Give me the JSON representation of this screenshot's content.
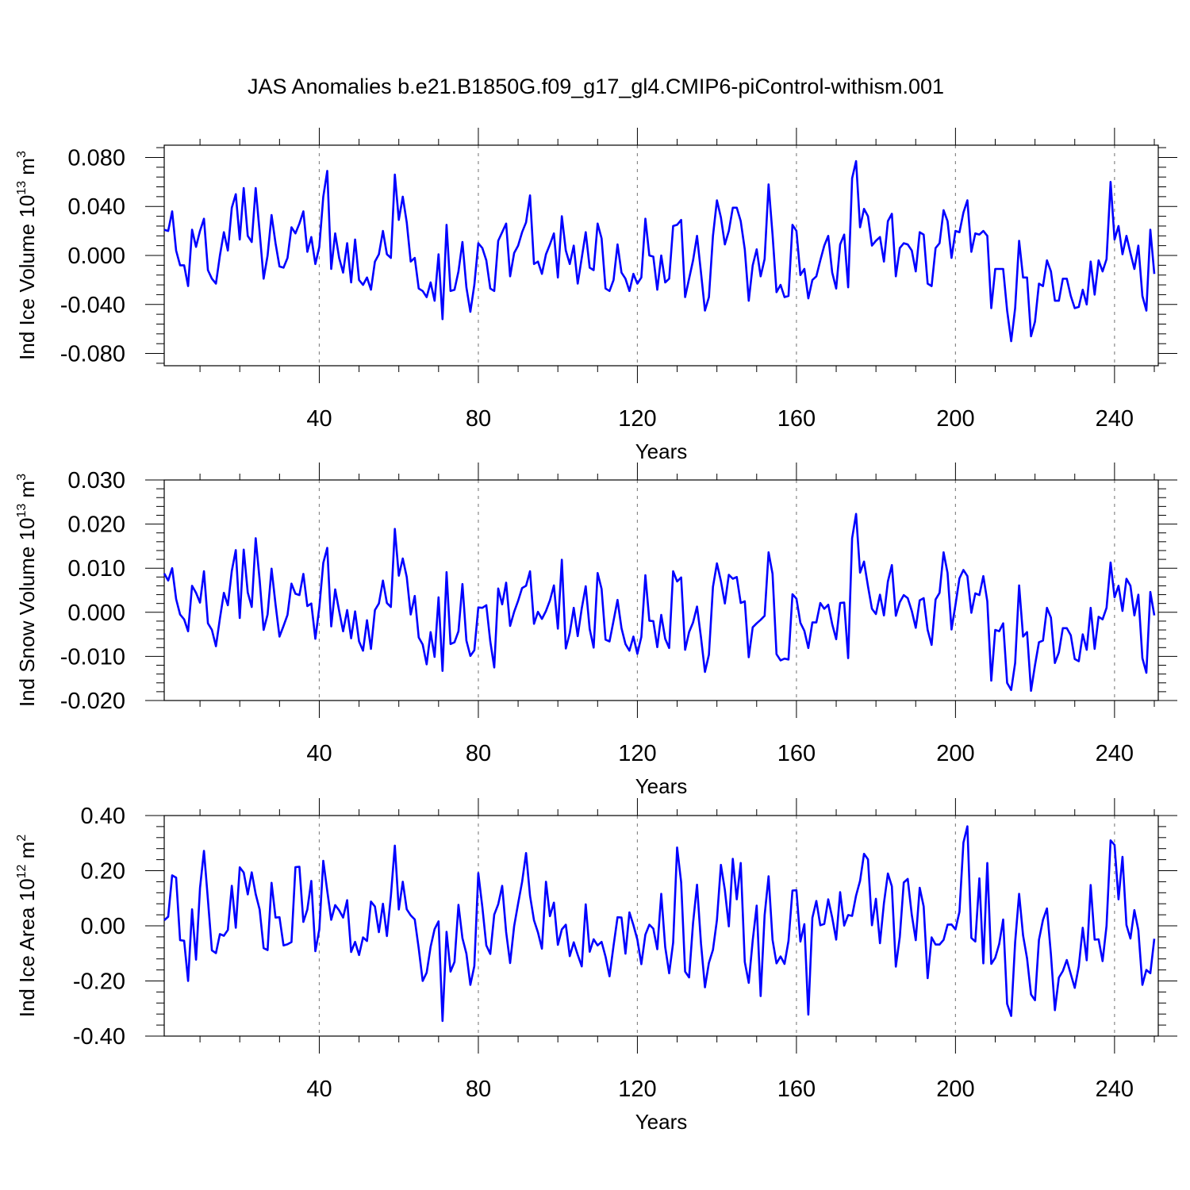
{
  "chart_data": {
    "type": "line",
    "title": "JAS Anomalies b.e21.B1850G.f09_g17_gl4.CMIP6-piControl-withism.001",
    "x_start": 1,
    "series_color": "#0000ff",
    "panels": [
      {
        "name": "ice-volume",
        "ylabel": "Ind Ice Volume 10",
        "ylabel_exp": "13",
        "ylabel_unit": " m",
        "ylabel_unit_exp": "3",
        "xlabel": "Years",
        "xlim": [
          1,
          251
        ],
        "ylim": [
          -0.09,
          0.09
        ],
        "xticks": [
          40,
          80,
          120,
          160,
          200,
          240
        ],
        "xtick_labels": [
          "40",
          "80",
          "120",
          "160",
          "200",
          "240"
        ],
        "yticks": [
          -0.08,
          -0.04,
          0.0,
          0.04,
          0.08
        ],
        "ytick_labels": [
          "-0.080",
          "-0.040",
          "0.000",
          "0.040",
          "0.080"
        ],
        "values": [
          0.021,
          0.02,
          0.036,
          0.004,
          -0.008,
          -0.008,
          -0.025,
          0.021,
          0.007,
          0.02,
          0.03,
          -0.012,
          -0.019,
          -0.023,
          0.0,
          0.019,
          0.004,
          0.039,
          0.05,
          0.013,
          0.055,
          0.016,
          0.011,
          0.055,
          0.019,
          -0.019,
          0.0,
          0.033,
          0.01,
          -0.009,
          -0.01,
          -0.002,
          0.023,
          0.018,
          0.026,
          0.036,
          0.003,
          0.015,
          -0.007,
          0.007,
          0.048,
          0.069,
          -0.011,
          0.018,
          -0.002,
          -0.014,
          0.01,
          -0.022,
          0.013,
          -0.02,
          -0.024,
          -0.018,
          -0.028,
          -0.005,
          0.001,
          0.02,
          0.001,
          -0.002,
          0.066,
          0.029,
          0.048,
          0.027,
          -0.005,
          -0.002,
          -0.027,
          -0.029,
          -0.034,
          -0.022,
          -0.037,
          0.001,
          -0.052,
          0.025,
          -0.029,
          -0.028,
          -0.013,
          0.011,
          -0.026,
          -0.046,
          -0.024,
          0.01,
          0.006,
          -0.004,
          -0.027,
          -0.029,
          0.012,
          0.019,
          0.026,
          -0.017,
          0.002,
          0.008,
          0.019,
          0.027,
          0.049,
          -0.007,
          -0.005,
          -0.015,
          0.001,
          0.009,
          0.018,
          -0.018,
          0.032,
          0.004,
          -0.007,
          0.008,
          -0.023,
          -0.002,
          0.019,
          -0.01,
          -0.012,
          0.026,
          0.014,
          -0.027,
          -0.029,
          -0.02,
          0.009,
          -0.014,
          -0.019,
          -0.029,
          -0.015,
          -0.023,
          -0.018,
          0.03,
          0.0,
          -0.001,
          -0.028,
          0.0,
          -0.022,
          -0.019,
          0.024,
          0.025,
          0.029,
          -0.034,
          -0.019,
          -0.004,
          0.016,
          -0.014,
          -0.045,
          -0.034,
          0.016,
          0.045,
          0.031,
          0.009,
          0.02,
          0.039,
          0.039,
          0.028,
          0.005,
          -0.037,
          -0.008,
          0.005,
          -0.017,
          -0.003,
          0.058,
          0.017,
          -0.03,
          -0.024,
          -0.034,
          -0.033,
          0.025,
          0.02,
          -0.016,
          -0.011,
          -0.035,
          -0.02,
          -0.017,
          -0.004,
          0.008,
          0.016,
          -0.014,
          -0.027,
          0.009,
          0.017,
          -0.026,
          0.063,
          0.077,
          0.023,
          0.038,
          0.032,
          0.008,
          0.012,
          0.015,
          -0.005,
          0.028,
          0.034,
          -0.017,
          0.006,
          0.01,
          0.009,
          0.004,
          -0.013,
          0.019,
          0.017,
          -0.023,
          -0.025,
          0.006,
          0.01,
          0.037,
          0.028,
          -0.002,
          0.02,
          0.019,
          0.035,
          0.045,
          0.003,
          0.018,
          0.017,
          0.02,
          0.016,
          -0.043,
          -0.011,
          -0.011,
          -0.011,
          -0.045,
          -0.07,
          -0.043,
          0.012,
          -0.018,
          -0.018,
          -0.066,
          -0.054,
          -0.023,
          -0.025,
          -0.004,
          -0.013,
          -0.037,
          -0.037,
          -0.019,
          -0.019,
          -0.033,
          -0.043,
          -0.042,
          -0.028,
          -0.04,
          -0.005,
          -0.032,
          -0.004,
          -0.013,
          -0.003,
          0.06,
          0.013,
          0.024,
          0.001,
          0.016,
          0.002,
          -0.011,
          0.008,
          -0.033,
          -0.045,
          0.021,
          -0.015
        ]
      },
      {
        "name": "snow-volume",
        "ylabel": "Ind Snow Volume 10",
        "ylabel_exp": "13",
        "ylabel_unit": " m",
        "ylabel_unit_exp": "3",
        "xlabel": "Years",
        "xlim": [
          1,
          251
        ],
        "ylim": [
          -0.02,
          0.03
        ],
        "xticks": [
          40,
          80,
          120,
          160,
          200,
          240
        ],
        "xtick_labels": [
          "40",
          "80",
          "120",
          "160",
          "200",
          "240"
        ],
        "yticks": [
          -0.02,
          -0.01,
          0.0,
          0.01,
          0.02,
          0.03
        ],
        "ytick_labels": [
          "-0.020",
          "-0.010",
          "0.000",
          "0.010",
          "0.020",
          "0.030"
        ],
        "values": [
          0.0088,
          0.0072,
          0.01,
          0.003,
          -0.0005,
          -0.0016,
          -0.0043,
          0.006,
          0.0044,
          0.0022,
          0.0093,
          -0.0025,
          -0.004,
          -0.0077,
          -0.0014,
          0.0044,
          0.0016,
          0.0094,
          0.0141,
          -0.0013,
          0.0142,
          0.0045,
          0.0012,
          0.0168,
          0.0073,
          -0.004,
          -0.0005,
          0.0099,
          0.0018,
          -0.0055,
          -0.0031,
          -0.0006,
          0.0065,
          0.0042,
          0.0039,
          0.0087,
          0.0014,
          0.002,
          -0.006,
          0.0011,
          0.0112,
          0.0146,
          -0.0032,
          0.0052,
          0.0003,
          -0.0043,
          0.0005,
          -0.0059,
          0.0002,
          -0.0066,
          -0.0087,
          -0.0018,
          -0.0083,
          0.0005,
          0.002,
          0.0072,
          0.0021,
          0.0012,
          0.0189,
          0.0083,
          0.0122,
          0.008,
          -0.0005,
          0.0037,
          -0.0057,
          -0.0073,
          -0.0118,
          -0.0045,
          -0.0101,
          0.0034,
          -0.0133,
          0.0091,
          -0.0072,
          -0.0068,
          -0.0043,
          0.0064,
          -0.0064,
          -0.0099,
          -0.0086,
          0.0011,
          0.001,
          0.0016,
          -0.0066,
          -0.0125,
          0.0054,
          0.0018,
          0.0067,
          -0.0031,
          0.0001,
          0.0026,
          0.0055,
          0.006,
          0.0093,
          -0.0026,
          0.0001,
          -0.0015,
          0.0003,
          0.0027,
          0.0061,
          -0.0037,
          0.0119,
          -0.0082,
          -0.0047,
          0.001,
          -0.0054,
          0.0009,
          0.0059,
          -0.0038,
          -0.008,
          0.0089,
          0.0053,
          -0.0062,
          -0.0066,
          -0.0019,
          0.0028,
          -0.0036,
          -0.0072,
          -0.0087,
          -0.0055,
          -0.0094,
          -0.0056,
          0.0084,
          -0.0019,
          -0.002,
          -0.0079,
          -0.0006,
          -0.006,
          -0.0081,
          0.0093,
          0.007,
          0.0079,
          -0.0085,
          -0.0045,
          -0.0023,
          0.0013,
          -0.0057,
          -0.0135,
          -0.0096,
          0.0058,
          0.0111,
          0.0071,
          0.002,
          0.0085,
          0.0076,
          0.008,
          0.0021,
          0.0025,
          -0.0102,
          -0.0034,
          -0.0025,
          -0.0017,
          -0.0008,
          0.0136,
          0.0087,
          -0.0095,
          -0.0109,
          -0.0105,
          -0.0107,
          0.0041,
          0.0031,
          -0.0024,
          -0.0042,
          -0.0081,
          -0.0023,
          -0.0023,
          0.0021,
          0.0008,
          0.0017,
          -0.0027,
          -0.0061,
          0.0021,
          0.0022,
          -0.0104,
          0.0168,
          0.0223,
          0.009,
          0.0115,
          0.0059,
          0.0008,
          -0.0004,
          0.004,
          -0.0007,
          0.007,
          0.0107,
          -0.0008,
          0.0023,
          0.0039,
          0.0032,
          0.0003,
          -0.0035,
          0.0027,
          0.0032,
          -0.004,
          -0.0074,
          0.0029,
          0.0044,
          0.0136,
          0.0089,
          -0.0039,
          0.0017,
          0.0077,
          0.0096,
          0.0082,
          -0.0001,
          0.0043,
          0.0039,
          0.0082,
          0.0025,
          -0.0155,
          -0.004,
          -0.0043,
          -0.0025,
          -0.016,
          -0.0176,
          -0.0115,
          0.0061,
          -0.0055,
          -0.0045,
          -0.0178,
          -0.012,
          -0.0068,
          -0.0064,
          0.001,
          -0.0012,
          -0.0115,
          -0.0091,
          -0.0036,
          -0.0036,
          -0.0052,
          -0.0106,
          -0.0111,
          -0.005,
          -0.0085,
          0.001,
          -0.0083,
          -0.001,
          -0.0016,
          0.001,
          0.0113,
          0.0034,
          0.006,
          0.0003,
          0.0076,
          0.006,
          -0.0007,
          0.004,
          -0.0104,
          -0.0137,
          0.0046,
          -0.0007
        ]
      },
      {
        "name": "ice-area",
        "ylabel": "Ind Ice Area 10",
        "ylabel_exp": "12",
        "ylabel_unit": " m",
        "ylabel_unit_exp": "2",
        "xlabel": "Years",
        "xlim": [
          1,
          251
        ],
        "ylim": [
          -0.4,
          0.4
        ],
        "xticks": [
          40,
          80,
          120,
          160,
          200,
          240
        ],
        "xtick_labels": [
          "40",
          "80",
          "120",
          "160",
          "200",
          "240"
        ],
        "yticks": [
          -0.4,
          -0.2,
          0.0,
          0.2,
          0.4
        ],
        "ytick_labels": [
          "-0.40",
          "-0.20",
          "0.00",
          "0.20",
          "0.40"
        ],
        "values": [
          0.02,
          0.033,
          0.183,
          0.175,
          -0.052,
          -0.054,
          -0.2,
          0.06,
          -0.123,
          0.137,
          0.272,
          0.094,
          -0.089,
          -0.099,
          -0.03,
          -0.036,
          -0.015,
          0.145,
          -0.007,
          0.212,
          0.193,
          0.114,
          0.194,
          0.115,
          0.059,
          -0.081,
          -0.088,
          0.156,
          0.03,
          0.031,
          -0.071,
          -0.067,
          -0.059,
          0.213,
          0.214,
          0.014,
          0.059,
          0.163,
          -0.092,
          -0.013,
          0.236,
          0.127,
          0.022,
          0.075,
          0.056,
          0.03,
          0.093,
          -0.095,
          -0.058,
          -0.106,
          -0.042,
          -0.055,
          0.088,
          0.07,
          -0.023,
          0.08,
          -0.037,
          0.108,
          0.291,
          0.059,
          0.16,
          0.06,
          0.038,
          0.023,
          -0.082,
          -0.2,
          -0.17,
          -0.076,
          -0.012,
          0.016,
          -0.345,
          -0.022,
          -0.166,
          -0.131,
          0.076,
          -0.045,
          -0.101,
          -0.214,
          -0.146,
          0.191,
          0.068,
          -0.071,
          -0.102,
          0.041,
          0.078,
          0.145,
          -0.023,
          -0.135,
          -0.001,
          0.081,
          0.159,
          0.264,
          0.109,
          0.02,
          -0.024,
          -0.083,
          0.16,
          0.035,
          0.084,
          -0.069,
          -0.013,
          0.004,
          -0.11,
          -0.06,
          -0.105,
          -0.147,
          0.078,
          -0.094,
          -0.049,
          -0.071,
          -0.058,
          -0.112,
          -0.183,
          -0.072,
          0.031,
          0.03,
          -0.101,
          0.049,
          0.003,
          -0.05,
          -0.139,
          -0.032,
          0.004,
          -0.01,
          -0.085,
          0.116,
          -0.077,
          -0.172,
          -0.061,
          0.284,
          0.158,
          -0.166,
          -0.187,
          0.01,
          0.149,
          -0.064,
          -0.223,
          -0.134,
          -0.087,
          0.021,
          0.221,
          0.13,
          -0.002,
          0.243,
          0.096,
          0.228,
          -0.131,
          -0.207,
          -0.053,
          0.073,
          -0.255,
          0.038,
          0.18,
          -0.051,
          -0.136,
          -0.111,
          -0.138,
          -0.055,
          0.128,
          0.129,
          -0.057,
          0.006,
          -0.322,
          0.029,
          0.09,
          0.002,
          0.007,
          0.096,
          0.03,
          -0.05,
          0.122,
          0.001,
          0.039,
          0.036,
          0.11,
          0.163,
          0.261,
          0.241,
          0.002,
          0.098,
          -0.063,
          0.082,
          0.19,
          0.143,
          -0.148,
          -0.04,
          0.157,
          0.17,
          0.04,
          -0.052,
          0.138,
          0.07,
          -0.19,
          -0.042,
          -0.068,
          -0.068,
          -0.051,
          0.004,
          0.005,
          -0.013,
          0.051,
          0.302,
          0.361,
          -0.044,
          -0.057,
          0.172,
          -0.136,
          0.228,
          -0.138,
          -0.116,
          -0.066,
          0.023,
          -0.283,
          -0.327,
          -0.059,
          0.116,
          -0.035,
          -0.118,
          -0.249,
          -0.27,
          -0.051,
          0.022,
          0.063,
          -0.104,
          -0.306,
          -0.188,
          -0.164,
          -0.124,
          -0.175,
          -0.225,
          -0.147,
          -0.007,
          -0.125,
          0.148,
          -0.05,
          -0.049,
          -0.128,
          0.0,
          0.31,
          0.293,
          0.096,
          0.25,
          0.003,
          -0.046,
          0.057,
          -0.016,
          -0.214,
          -0.16,
          -0.172,
          -0.047
        ]
      }
    ]
  }
}
